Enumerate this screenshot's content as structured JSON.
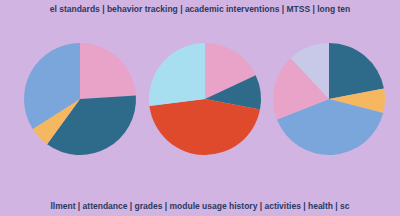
{
  "texts": {
    "top": "el standards | behavior tracking | academic interventions | MTSS | long ten",
    "bottom": "llment | attendance |  grades | module usage history | activities | health | sc"
  },
  "chart_data": [
    {
      "type": "pie",
      "values": [
        24,
        36,
        6,
        34
      ],
      "colors": [
        "#e9a3c9",
        "#2e6b8a",
        "#f5b860",
        "#7aa6dc"
      ]
    },
    {
      "type": "pie",
      "values": [
        18,
        10,
        45,
        27
      ],
      "colors": [
        "#e9a3c9",
        "#2e6b8a",
        "#e04a2c",
        "#a8dff0"
      ]
    },
    {
      "type": "pie",
      "values": [
        22,
        7,
        40,
        19,
        12
      ],
      "colors": [
        "#2e6b8a",
        "#f5b860",
        "#7aa6dc",
        "#e9a3c9",
        "#c8c8e8"
      ]
    }
  ]
}
